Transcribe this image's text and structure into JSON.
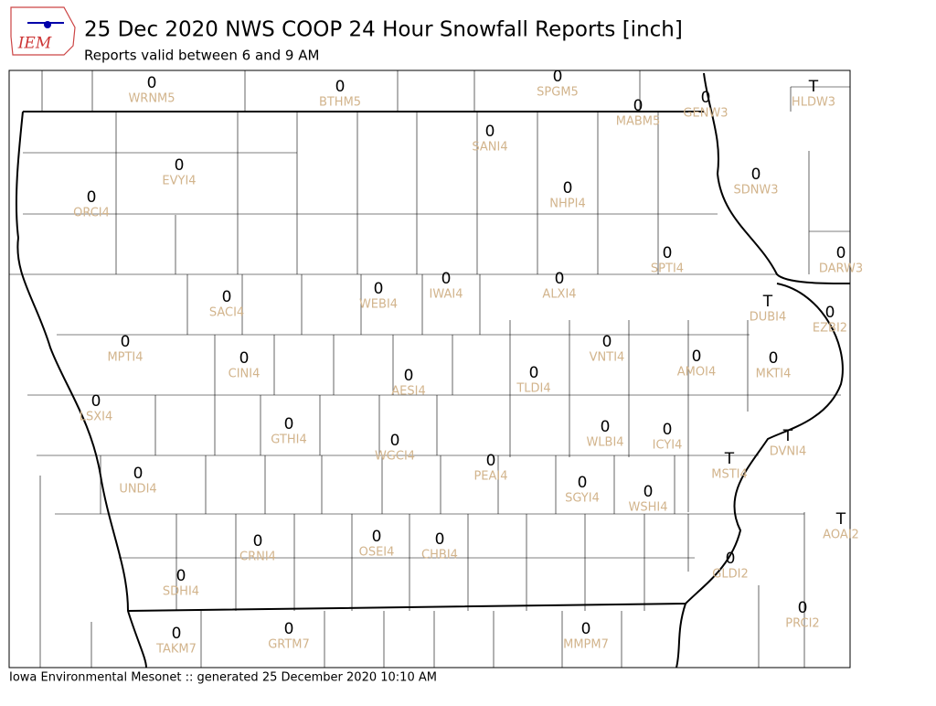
{
  "header": {
    "logo_text": "IEM",
    "title": "25 Dec 2020 NWS COOP 24 Hour Snowfall Reports [inch]",
    "subtitle": "Reports valid between 6 and 9 AM"
  },
  "stations": [
    {
      "id": "WRNM5",
      "value": 0
    },
    {
      "id": "BTHM5",
      "value": 0
    },
    {
      "id": "SPGM5",
      "value": 0
    },
    {
      "id": "HLDW3",
      "value": "T"
    },
    {
      "id": "MABM5",
      "value": 0
    },
    {
      "id": "GENW3",
      "value": 0
    },
    {
      "id": "SANI4",
      "value": 0
    },
    {
      "id": "EVYI4",
      "value": 0
    },
    {
      "id": "ORCI4",
      "value": 0
    },
    {
      "id": "NHPI4",
      "value": 0
    },
    {
      "id": "SDNW3",
      "value": 0
    },
    {
      "id": "SPTI4",
      "value": 0
    },
    {
      "id": "DARW3",
      "value": 0
    },
    {
      "id": "WEBI4",
      "value": 0
    },
    {
      "id": "IWAI4",
      "value": 0
    },
    {
      "id": "ALXI4",
      "value": 0
    },
    {
      "id": "SACI4",
      "value": 0
    },
    {
      "id": "DUBI4",
      "value": "T"
    },
    {
      "id": "EZBI2",
      "value": 0
    },
    {
      "id": "MPTI4",
      "value": 0
    },
    {
      "id": "VNTI4",
      "value": 0
    },
    {
      "id": "CINI4",
      "value": 0
    },
    {
      "id": "AMOI4",
      "value": 0
    },
    {
      "id": "MKTI4",
      "value": 0
    },
    {
      "id": "AESI4",
      "value": 0
    },
    {
      "id": "TLDI4",
      "value": 0
    },
    {
      "id": "LSXI4",
      "value": 0
    },
    {
      "id": "GTHI4",
      "value": 0
    },
    {
      "id": "WLBI4",
      "value": 0
    },
    {
      "id": "ICYI4",
      "value": 0
    },
    {
      "id": "DVNI4",
      "value": "T"
    },
    {
      "id": "WGCI4",
      "value": 0
    },
    {
      "id": "PEAI4",
      "value": 0
    },
    {
      "id": "MSTI4",
      "value": "T"
    },
    {
      "id": "UNDI4",
      "value": 0
    },
    {
      "id": "SGYI4",
      "value": 0
    },
    {
      "id": "WSHI4",
      "value": 0
    },
    {
      "id": "AOAI2",
      "value": "T"
    },
    {
      "id": "CRNI4",
      "value": 0
    },
    {
      "id": "OSEI4",
      "value": 0
    },
    {
      "id": "CHBI4",
      "value": 0
    },
    {
      "id": "GLDI2",
      "value": 0
    },
    {
      "id": "SDHI4",
      "value": 0
    },
    {
      "id": "PRCI2",
      "value": 0
    },
    {
      "id": "TAKM7",
      "value": 0
    },
    {
      "id": "GRTM7",
      "value": 0
    },
    {
      "id": "MMPM7",
      "value": 0
    }
  ],
  "footer": "Iowa Environmental Mesonet :: generated 25 December 2020 10:10 AM"
}
